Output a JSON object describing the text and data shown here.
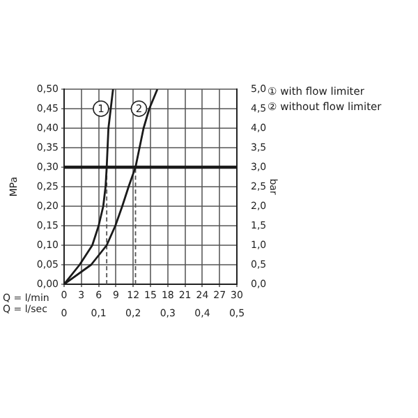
{
  "chart_data": {
    "type": "line",
    "xlabel": "Q = l/min",
    "x2label": "Q = l/sec",
    "ylabel": "MPa",
    "y2label": "bar",
    "xlim": [
      0,
      30
    ],
    "xticks": [
      0,
      3,
      6,
      9,
      12,
      15,
      18,
      21,
      24,
      27,
      30
    ],
    "x2lim": [
      0,
      0.5
    ],
    "x2ticks": [
      {
        "value": 0,
        "label": "0"
      },
      {
        "value": 0.1,
        "label": "0,1"
      },
      {
        "value": 0.2,
        "label": "0,2"
      },
      {
        "value": 0.3,
        "label": "0,3"
      },
      {
        "value": 0.4,
        "label": "0,4"
      },
      {
        "value": 0.5,
        "label": "0,5"
      }
    ],
    "ylim": [
      0,
      0.5
    ],
    "yticks": [
      {
        "value": 0,
        "label": "0,00"
      },
      {
        "value": 0.05,
        "label": "0,05"
      },
      {
        "value": 0.1,
        "label": "0,10"
      },
      {
        "value": 0.15,
        "label": "0,15"
      },
      {
        "value": 0.2,
        "label": "0,20"
      },
      {
        "value": 0.25,
        "label": "0,25"
      },
      {
        "value": 0.3,
        "label": "0,30"
      },
      {
        "value": 0.35,
        "label": "0,35"
      },
      {
        "value": 0.4,
        "label": "0,40"
      },
      {
        "value": 0.45,
        "label": "0,45"
      },
      {
        "value": 0.5,
        "label": "0,50"
      }
    ],
    "y2lim": [
      0,
      5
    ],
    "y2ticks": [
      {
        "value": 0,
        "label": "0,0"
      },
      {
        "value": 0.5,
        "label": "0,5"
      },
      {
        "value": 1,
        "label": "1,0"
      },
      {
        "value": 1.5,
        "label": "1,5"
      },
      {
        "value": 2,
        "label": "2,0"
      },
      {
        "value": 2.5,
        "label": "2,5"
      },
      {
        "value": 3,
        "label": "3,0"
      },
      {
        "value": 3.5,
        "label": "3,5"
      },
      {
        "value": 4,
        "label": "4,0"
      },
      {
        "value": 4.5,
        "label": "4,5"
      },
      {
        "value": 5,
        "label": "5,0"
      }
    ],
    "series": [
      {
        "name": "① with flow limiter",
        "color": "#1a1a1a",
        "x": [
          0,
          2.7,
          4.9,
          6,
          6.8,
          7.2,
          7.4,
          7.7,
          8.5
        ],
        "values": [
          0,
          0.05,
          0.1,
          0.15,
          0.2,
          0.25,
          0.3,
          0.4,
          0.5
        ]
      },
      {
        "name": "② without flow limiter",
        "color": "#1a1a1a",
        "x": [
          0,
          4.7,
          7.4,
          8.9,
          10.1,
          11.2,
          12.4,
          13.8,
          14.8,
          16.2
        ],
        "values": [
          0,
          0.05,
          0.1,
          0.15,
          0.2,
          0.25,
          0.3,
          0.4,
          0.45,
          0.5
        ]
      }
    ],
    "ref_lines": [
      {
        "axis": "y",
        "value": 0.3,
        "color": "#1a1a1a",
        "line_style": "solid"
      },
      {
        "axis": "x",
        "value": 7.4,
        "color": "#555555",
        "line_style": "dashed"
      },
      {
        "axis": "x",
        "value": 12.4,
        "color": "#555555",
        "line_style": "dashed"
      }
    ],
    "annotations": [
      {
        "text": "1",
        "x": 6.4,
        "y": 0.45
      },
      {
        "text": "2",
        "x": 13,
        "y": 0.45
      }
    ],
    "grid": true,
    "legend": "top right",
    "marker": "none",
    "line_style": "solid"
  }
}
